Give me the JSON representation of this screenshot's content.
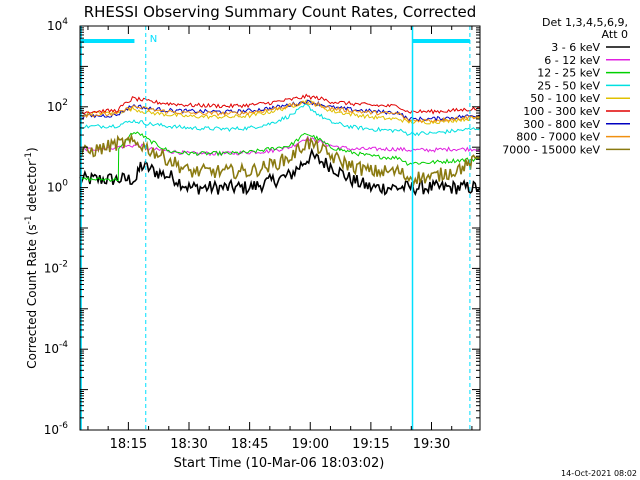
{
  "chart_data": {
    "type": "line",
    "title": "RHESSI Observing Summary Count Rates, Corrected",
    "xlabel": "Start Time (10-Mar-06 18:03:02)",
    "ylabel_main": "Corrected Count Rate (s",
    "ylabel_sup1": "-1",
    "ylabel_mid": " detector",
    "ylabel_sup2": "-1",
    "ylabel_end": ")",
    "yscale": "log",
    "ylim_exp": [
      -6,
      4
    ],
    "y_ticks": [
      {
        "value": 1e-06,
        "base": "10",
        "exp": "-6"
      },
      {
        "value": 0.0001,
        "base": "10",
        "exp": "-4"
      },
      {
        "value": 0.01,
        "base": "10",
        "exp": "-2"
      },
      {
        "value": 1.0,
        "base": "10",
        "exp": "0"
      },
      {
        "value": 100.0,
        "base": "10",
        "exp": "2"
      },
      {
        "value": 10000.0,
        "base": "10",
        "exp": "4"
      }
    ],
    "xlim_min": [
      3.03,
      102
    ],
    "x_ticks": [
      {
        "min": 15,
        "label": "18:15"
      },
      {
        "min": 30,
        "label": "18:30"
      },
      {
        "min": 45,
        "label": "18:45"
      },
      {
        "min": 60,
        "label": "19:00"
      },
      {
        "min": 75,
        "label": "19:15"
      },
      {
        "min": 90,
        "label": "19:30"
      }
    ],
    "legend": {
      "header1": "Det 1,3,4,5,6,9,",
      "header2": "Att 0"
    },
    "series": [
      {
        "name": "3 - 6 keV",
        "color": "#000000",
        "x": [
          3.03,
          12,
          17,
          18,
          20,
          22,
          26,
          30,
          40,
          45,
          48,
          50,
          55,
          60,
          65,
          70,
          75,
          80,
          82,
          84,
          90,
          95,
          100,
          102
        ],
        "y": [
          1.6,
          1.6,
          1.6,
          3.5,
          3,
          2.4,
          1.8,
          1.0,
          1.0,
          1.0,
          1.2,
          1.4,
          2.0,
          6,
          3.5,
          1.6,
          1.0,
          1.0,
          1.0,
          1.0,
          1.0,
          1.0,
          1.0,
          1.0
        ]
      },
      {
        "name": "6 - 12 keV",
        "color": "#e020e0",
        "x": [
          3.03,
          12,
          16,
          18,
          20,
          25,
          30,
          40,
          45,
          50,
          55,
          59,
          62,
          65,
          70,
          75,
          80,
          82,
          84,
          90,
          95,
          100,
          102
        ],
        "y": [
          8.5,
          10,
          11,
          11,
          9,
          8,
          7,
          7,
          7.5,
          8,
          10,
          17,
          14,
          11,
          9,
          9,
          9,
          9,
          8.5,
          8.5,
          9,
          9,
          9
        ]
      },
      {
        "name": "12 - 25 keV",
        "color": "#00d000",
        "x": [
          3.03,
          12.5,
          12.6,
          16,
          18,
          20,
          25,
          30,
          40,
          45,
          50,
          55,
          59,
          62,
          65,
          70,
          75,
          80,
          82,
          84,
          90,
          95,
          100,
          102
        ],
        "y": [
          1.6,
          1.6,
          8.5,
          23,
          21,
          15,
          8,
          7,
          7,
          7.5,
          9,
          11,
          22,
          16,
          10,
          7.5,
          6,
          5.5,
          5.5,
          4,
          4.2,
          4.6,
          5,
          5.2
        ]
      },
      {
        "name": "25 - 50 keV",
        "color": "#00e0e0",
        "x": [
          3.03,
          12,
          16,
          18,
          20,
          25,
          30,
          40,
          45,
          50,
          55,
          59,
          62,
          65,
          70,
          75,
          80,
          82,
          84,
          90,
          95,
          100,
          102
        ],
        "y": [
          32,
          34,
          45,
          42,
          38,
          33,
          30,
          28,
          30,
          38,
          60,
          110,
          65,
          42,
          32,
          28,
          26,
          26,
          22,
          22,
          25,
          28,
          30
        ]
      },
      {
        "name": "50 - 100 keV",
        "color": "#e0c000",
        "x": [
          3.03,
          12,
          16,
          18,
          20,
          25,
          30,
          40,
          45,
          50,
          55,
          59,
          62,
          65,
          70,
          75,
          80,
          82,
          84,
          90,
          95,
          100,
          102
        ],
        "y": [
          68,
          72,
          90,
          80,
          72,
          64,
          58,
          56,
          60,
          75,
          100,
          140,
          110,
          80,
          66,
          56,
          50,
          50,
          42,
          42,
          46,
          52,
          55
        ]
      },
      {
        "name": "100 - 300 keV",
        "color": "#e00000",
        "x": [
          3.03,
          12,
          16,
          18,
          20,
          25,
          30,
          40,
          45,
          50,
          55,
          59,
          62,
          65,
          70,
          75,
          80,
          82,
          84,
          90,
          95,
          100,
          102
        ],
        "y": [
          75,
          80,
          160,
          150,
          135,
          120,
          110,
          104,
          110,
          125,
          150,
          180,
          165,
          135,
          120,
          110,
          104,
          104,
          76,
          76,
          80,
          88,
          92
        ]
      },
      {
        "name": "300 - 800 keV",
        "color": "#0000c0",
        "x": [
          3.03,
          12,
          16,
          18,
          20,
          25,
          30,
          40,
          45,
          50,
          55,
          59,
          62,
          65,
          70,
          75,
          80,
          82,
          84,
          90,
          95,
          100,
          102
        ],
        "y": [
          58,
          62,
          108,
          100,
          90,
          82,
          78,
          75,
          80,
          92,
          112,
          135,
          120,
          98,
          86,
          78,
          72,
          72,
          50,
          50,
          54,
          60,
          62
        ]
      },
      {
        "name": "800 - 7000 keV",
        "color": "#f09010",
        "x": [
          3.03,
          12,
          16,
          18,
          20,
          25,
          30,
          40,
          45,
          50,
          55,
          59,
          62,
          65,
          70,
          75,
          80,
          82,
          84,
          90,
          95,
          100,
          102
        ],
        "y": [
          62,
          66,
          100,
          95,
          86,
          76,
          70,
          68,
          72,
          85,
          108,
          125,
          115,
          92,
          80,
          72,
          68,
          68,
          46,
          46,
          50,
          56,
          58
        ]
      },
      {
        "name": "7000 - 15000 keV",
        "color": "#8a7a10",
        "x": [
          3.03,
          8,
          12,
          15,
          18,
          20,
          25,
          30,
          40,
          45,
          50,
          55,
          59,
          62,
          65,
          70,
          75,
          80,
          82,
          84,
          90,
          95,
          100,
          102
        ],
        "y": [
          7,
          9,
          12,
          13,
          12,
          9,
          5,
          2.5,
          2.5,
          2.5,
          3.5,
          5.5,
          13,
          10,
          6,
          3.5,
          2.5,
          2.5,
          2.5,
          1.8,
          1.8,
          2.5,
          4,
          6
        ]
      }
    ],
    "markers": {
      "solid_lines_min": [
        3.3,
        85.3
      ],
      "dashed_lines_min": [
        19.3,
        99.5
      ],
      "bars": [
        [
          3.3,
          16.5
        ],
        [
          85.3,
          99.5
        ]
      ],
      "letter": "N"
    }
  },
  "footer": {
    "timestamp": "14-Oct-2021 08:02"
  }
}
